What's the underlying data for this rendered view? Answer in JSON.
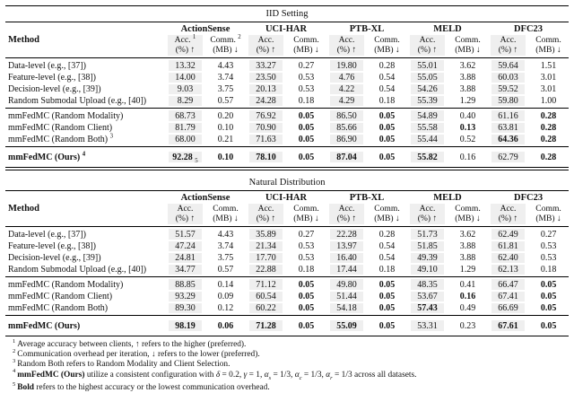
{
  "colors": {
    "shade": "#efefef",
    "rule": "#000000",
    "text": "#111111",
    "background": "#ffffff"
  },
  "tables": [
    {
      "title": "IID Setting",
      "method_header": "Method",
      "datasets": [
        "ActionSense",
        "UCI-HAR",
        "PTB-XL",
        "MELD",
        "DFC23"
      ],
      "subheads": [
        {
          "l1": "Acc.",
          "sup": "1",
          "l2": "(%) ↑"
        },
        {
          "l1": "Comm.",
          "sup": "2",
          "l2": "(MB) ↓"
        },
        {
          "l1": "Acc.",
          "l2": "(%) ↑"
        },
        {
          "l1": "Comm.",
          "l2": "(MB) ↓"
        },
        {
          "l1": "Acc.",
          "l2": "(%) ↑"
        },
        {
          "l1": "Comm.",
          "l2": "(MB) ↓"
        },
        {
          "l1": "Acc.",
          "l2": "(%) ↑"
        },
        {
          "l1": "Comm.",
          "l2": "(MB) ↓"
        },
        {
          "l1": "Acc.",
          "l2": "(%) ↑"
        },
        {
          "l1": "Comm.",
          "l2": "(MB) ↓"
        }
      ],
      "groups": [
        {
          "rows": [
            {
              "method": "Data-level (e.g., [37])",
              "cells": [
                {
                  "v": "13.32"
                },
                {
                  "v": "4.43"
                },
                {
                  "v": "33.27"
                },
                {
                  "v": "0.27"
                },
                {
                  "v": "19.80"
                },
                {
                  "v": "0.28"
                },
                {
                  "v": "55.01"
                },
                {
                  "v": "3.62"
                },
                {
                  "v": "59.64"
                },
                {
                  "v": "1.51"
                }
              ]
            },
            {
              "method": "Feature-level (e.g., [38])",
              "cells": [
                {
                  "v": "14.00"
                },
                {
                  "v": "3.74"
                },
                {
                  "v": "23.50"
                },
                {
                  "v": "0.53"
                },
                {
                  "v": "4.76"
                },
                {
                  "v": "0.54"
                },
                {
                  "v": "55.05"
                },
                {
                  "v": "3.88"
                },
                {
                  "v": "60.03"
                },
                {
                  "v": "3.01"
                }
              ]
            },
            {
              "method": "Decision-level (e.g., [39])",
              "cells": [
                {
                  "v": "9.03"
                },
                {
                  "v": "3.75"
                },
                {
                  "v": "20.13"
                },
                {
                  "v": "0.53"
                },
                {
                  "v": "4.22"
                },
                {
                  "v": "0.54"
                },
                {
                  "v": "54.26"
                },
                {
                  "v": "3.88"
                },
                {
                  "v": "59.52"
                },
                {
                  "v": "3.01"
                }
              ]
            },
            {
              "method": "Random Submodal Upload (e.g., [40])",
              "cells": [
                {
                  "v": "8.29"
                },
                {
                  "v": "0.57"
                },
                {
                  "v": "24.28"
                },
                {
                  "v": "0.18"
                },
                {
                  "v": "4.29"
                },
                {
                  "v": "0.18"
                },
                {
                  "v": "55.39"
                },
                {
                  "v": "1.29"
                },
                {
                  "v": "59.80"
                },
                {
                  "v": "1.00"
                }
              ]
            }
          ]
        },
        {
          "rows": [
            {
              "method": "mmFedMC (Random Modality)",
              "cells": [
                {
                  "v": "68.73"
                },
                {
                  "v": "0.20"
                },
                {
                  "v": "76.92"
                },
                {
                  "v": "0.05",
                  "b": true
                },
                {
                  "v": "86.50"
                },
                {
                  "v": "0.05",
                  "b": true
                },
                {
                  "v": "54.89"
                },
                {
                  "v": "0.40"
                },
                {
                  "v": "61.16"
                },
                {
                  "v": "0.28",
                  "b": true
                }
              ]
            },
            {
              "method": "mmFedMC (Random Client)",
              "cells": [
                {
                  "v": "81.79"
                },
                {
                  "v": "0.10"
                },
                {
                  "v": "70.90"
                },
                {
                  "v": "0.05",
                  "b": true
                },
                {
                  "v": "85.66"
                },
                {
                  "v": "0.05",
                  "b": true
                },
                {
                  "v": "55.58"
                },
                {
                  "v": "0.13",
                  "b": true
                },
                {
                  "v": "63.81"
                },
                {
                  "v": "0.28",
                  "b": true
                }
              ]
            },
            {
              "method": "mmFedMC (Random Both)",
              "sup": "3",
              "cells": [
                {
                  "v": "68.00"
                },
                {
                  "v": "0.21"
                },
                {
                  "v": "71.63"
                },
                {
                  "v": "0.05",
                  "b": true
                },
                {
                  "v": "86.90"
                },
                {
                  "v": "0.05",
                  "b": true
                },
                {
                  "v": "55.44"
                },
                {
                  "v": "0.52"
                },
                {
                  "v": "64.36",
                  "b": true
                },
                {
                  "v": "0.28",
                  "b": true
                }
              ]
            }
          ]
        },
        {
          "final": true,
          "rows": [
            {
              "method": "mmFedMC (Ours)",
              "sup": "4",
              "bold": true,
              "cells": [
                {
                  "v": "92.28",
                  "b": true,
                  "fn": "5"
                },
                {
                  "v": "0.10",
                  "b": true
                },
                {
                  "v": "78.10",
                  "b": true
                },
                {
                  "v": "0.05",
                  "b": true
                },
                {
                  "v": "87.04",
                  "b": true
                },
                {
                  "v": "0.05",
                  "b": true
                },
                {
                  "v": "55.82",
                  "b": true
                },
                {
                  "v": "0.16"
                },
                {
                  "v": "62.79"
                },
                {
                  "v": "0.28",
                  "b": true
                }
              ]
            }
          ]
        }
      ],
      "bottom_rule": "double"
    },
    {
      "title": "Natural Distribution",
      "method_header": "Method",
      "datasets": [
        "ActionSense",
        "UCI-HAR",
        "PTB-XL",
        "MELD",
        "DFC23"
      ],
      "subheads": [
        {
          "l1": "Acc.",
          "l2": "(%) ↑"
        },
        {
          "l1": "Comm.",
          "l2": "(MB) ↓"
        },
        {
          "l1": "Acc.",
          "l2": "(%) ↑"
        },
        {
          "l1": "Comm.",
          "l2": "(MB) ↓"
        },
        {
          "l1": "Acc.",
          "l2": "(%) ↑"
        },
        {
          "l1": "Comm.",
          "l2": "(MB) ↓"
        },
        {
          "l1": "Acc.",
          "l2": "(%) ↑"
        },
        {
          "l1": "Comm.",
          "l2": "(MB) ↓"
        },
        {
          "l1": "Acc.",
          "l2": "(%) ↑"
        },
        {
          "l1": "Comm.",
          "l2": "(MB) ↓"
        }
      ],
      "groups": [
        {
          "rows": [
            {
              "method": "Data-level (e.g., [37])",
              "cells": [
                {
                  "v": "51.57"
                },
                {
                  "v": "4.43"
                },
                {
                  "v": "35.89"
                },
                {
                  "v": "0.27"
                },
                {
                  "v": "22.28"
                },
                {
                  "v": "0.28"
                },
                {
                  "v": "51.73"
                },
                {
                  "v": "3.62"
                },
                {
                  "v": "62.49"
                },
                {
                  "v": "0.27"
                }
              ]
            },
            {
              "method": "Feature-level (e.g., [38])",
              "cells": [
                {
                  "v": "47.24"
                },
                {
                  "v": "3.74"
                },
                {
                  "v": "21.34"
                },
                {
                  "v": "0.53"
                },
                {
                  "v": "13.97"
                },
                {
                  "v": "0.54"
                },
                {
                  "v": "51.85"
                },
                {
                  "v": "3.88"
                },
                {
                  "v": "61.81"
                },
                {
                  "v": "0.53"
                }
              ]
            },
            {
              "method": "Decision-level (e.g., [39])",
              "cells": [
                {
                  "v": "24.81"
                },
                {
                  "v": "3.75"
                },
                {
                  "v": "17.70"
                },
                {
                  "v": "0.53"
                },
                {
                  "v": "16.40"
                },
                {
                  "v": "0.54"
                },
                {
                  "v": "49.39"
                },
                {
                  "v": "3.88"
                },
                {
                  "v": "62.40"
                },
                {
                  "v": "0.53"
                }
              ]
            },
            {
              "method": "Random Submodal Upload (e.g., [40])",
              "cells": [
                {
                  "v": "34.77"
                },
                {
                  "v": "0.57"
                },
                {
                  "v": "22.88"
                },
                {
                  "v": "0.18"
                },
                {
                  "v": "17.44"
                },
                {
                  "v": "0.18"
                },
                {
                  "v": "49.10"
                },
                {
                  "v": "1.29"
                },
                {
                  "v": "62.13"
                },
                {
                  "v": "0.18"
                }
              ]
            }
          ]
        },
        {
          "rows": [
            {
              "method": "mmFedMC (Random Modality)",
              "cells": [
                {
                  "v": "88.85"
                },
                {
                  "v": "0.14"
                },
                {
                  "v": "71.12"
                },
                {
                  "v": "0.05",
                  "b": true
                },
                {
                  "v": "49.80"
                },
                {
                  "v": "0.05",
                  "b": true
                },
                {
                  "v": "48.35"
                },
                {
                  "v": "0.41"
                },
                {
                  "v": "66.47"
                },
                {
                  "v": "0.05",
                  "b": true
                }
              ]
            },
            {
              "method": "mmFedMC (Random Client)",
              "cells": [
                {
                  "v": "93.29"
                },
                {
                  "v": "0.09"
                },
                {
                  "v": "60.54"
                },
                {
                  "v": "0.05",
                  "b": true
                },
                {
                  "v": "51.44"
                },
                {
                  "v": "0.05",
                  "b": true
                },
                {
                  "v": "53.67"
                },
                {
                  "v": "0.16",
                  "b": true
                },
                {
                  "v": "67.41"
                },
                {
                  "v": "0.05",
                  "b": true
                }
              ]
            },
            {
              "method": "mmFedMC (Random Both)",
              "cells": [
                {
                  "v": "89.30"
                },
                {
                  "v": "0.12"
                },
                {
                  "v": "60.22"
                },
                {
                  "v": "0.05",
                  "b": true
                },
                {
                  "v": "54.18"
                },
                {
                  "v": "0.05",
                  "b": true
                },
                {
                  "v": "57.43",
                  "b": true
                },
                {
                  "v": "0.49"
                },
                {
                  "v": "66.69"
                },
                {
                  "v": "0.05",
                  "b": true
                }
              ]
            }
          ]
        },
        {
          "final": true,
          "rows": [
            {
              "method": "mmFedMC (Ours)",
              "bold": true,
              "cells": [
                {
                  "v": "98.19",
                  "b": true
                },
                {
                  "v": "0.06",
                  "b": true
                },
                {
                  "v": "71.28",
                  "b": true
                },
                {
                  "v": "0.05",
                  "b": true
                },
                {
                  "v": "55.09",
                  "b": true
                },
                {
                  "v": "0.05",
                  "b": true
                },
                {
                  "v": "53.31"
                },
                {
                  "v": "0.23"
                },
                {
                  "v": "67.61",
                  "b": true
                },
                {
                  "v": "0.05",
                  "b": true
                }
              ]
            }
          ]
        }
      ],
      "bottom_rule": "thick"
    }
  ],
  "footnotes": [
    {
      "sup": "1",
      "segments": [
        {
          "t": "Average accuracy between clients, ↑ refers to the higher (preferred)."
        }
      ]
    },
    {
      "sup": "2",
      "segments": [
        {
          "t": "Communication overhead per iteration, ↓ refers to the lower (preferred)."
        }
      ]
    },
    {
      "sup": "3",
      "segments": [
        {
          "t": "Random Both refers to Random Modality and Client Selection."
        }
      ]
    },
    {
      "sup": "4",
      "segments": [
        {
          "t": "mmFedMC (Ours)",
          "b": true
        },
        {
          "t": " utilize a consistent configuration with "
        },
        {
          "t": "δ",
          "i": true
        },
        {
          "t": " = 0.2, "
        },
        {
          "t": "γ",
          "i": true
        },
        {
          "t": " = 1, "
        },
        {
          "t": "α",
          "i": true
        },
        {
          "t": "s",
          "sub": true
        },
        {
          "t": " = 1/3, "
        },
        {
          "t": "α",
          "i": true
        },
        {
          "t": "c",
          "sub": true
        },
        {
          "t": " = 1/3, "
        },
        {
          "t": "α",
          "i": true
        },
        {
          "t": "r",
          "sub": true
        },
        {
          "t": " = 1/3 across all datasets."
        }
      ]
    },
    {
      "sup": "5",
      "segments": [
        {
          "t": "Bold",
          "b": true
        },
        {
          "t": " refers to the highest accuracy or the lowest communication overhead."
        }
      ]
    }
  ]
}
